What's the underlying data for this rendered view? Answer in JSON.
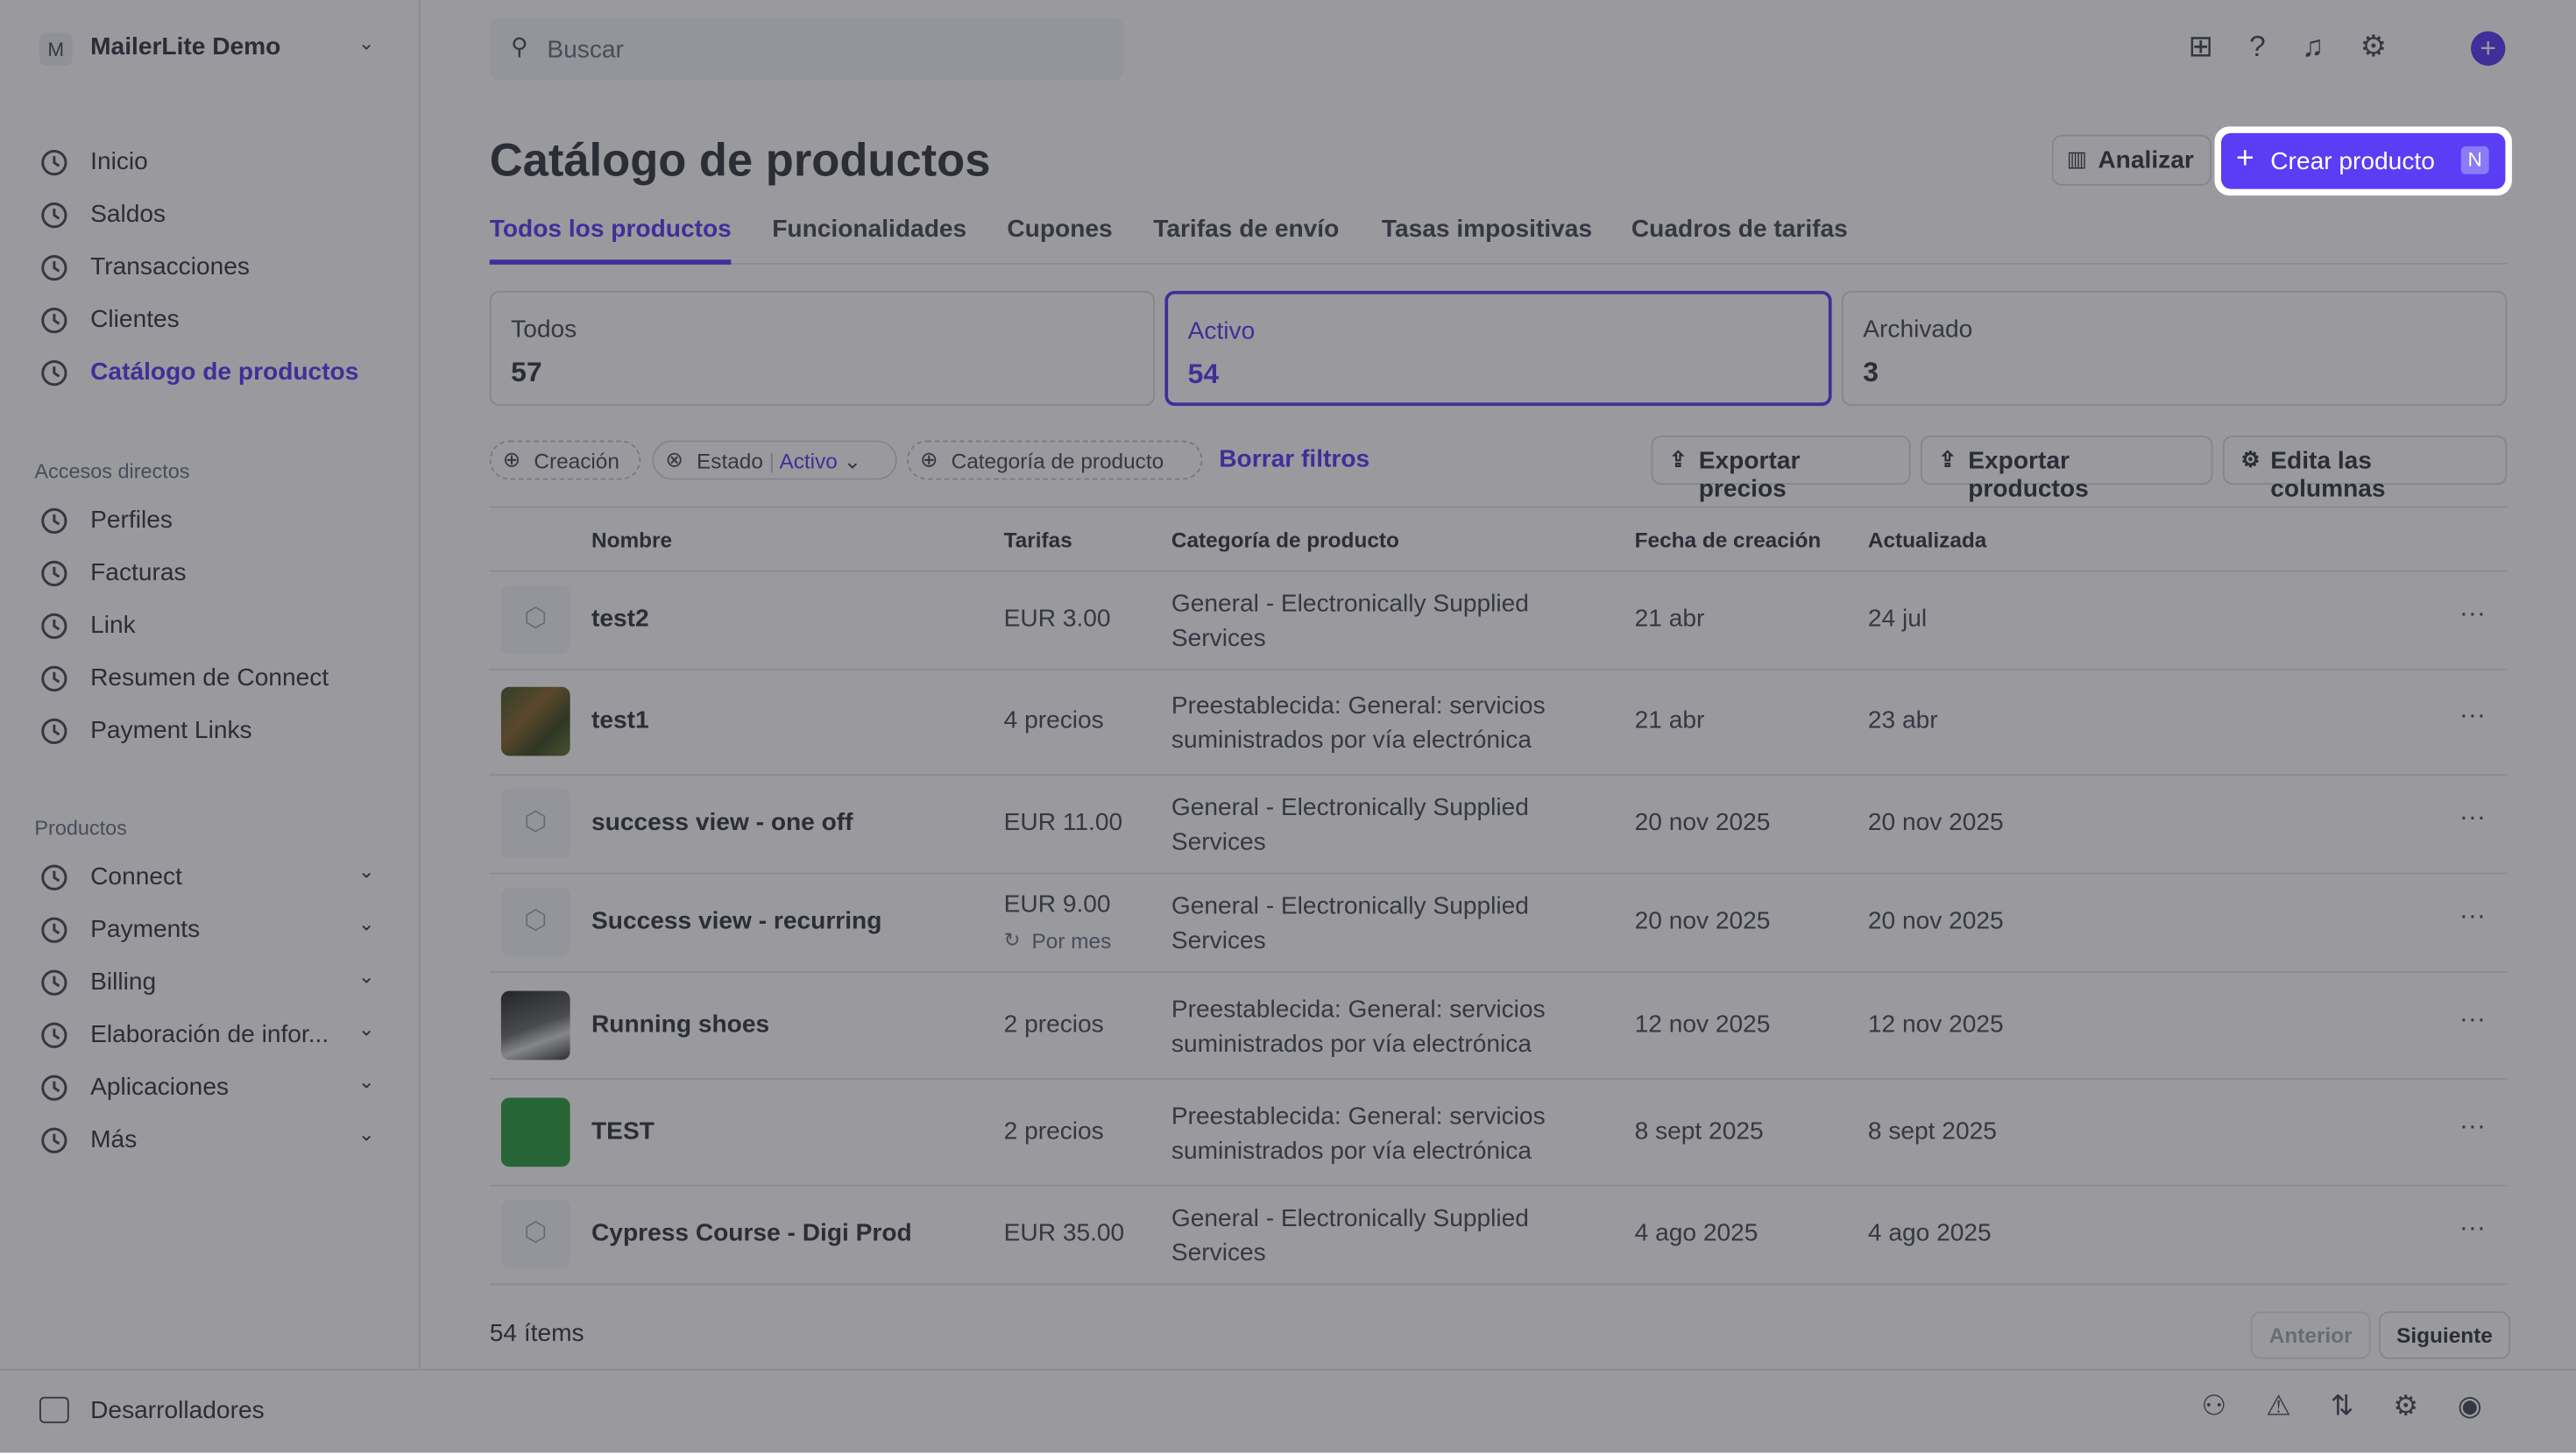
{
  "sidebar": {
    "account_initial": "M",
    "account": "MailerLite Demo",
    "nav": [
      "Inicio",
      "Saldos",
      "Transacciones",
      "Clientes",
      "Catálogo de productos"
    ],
    "shortcuts_title": "Accesos directos",
    "shortcuts": [
      "Perfiles",
      "Facturas",
      "Link",
      "Resumen de Connect",
      "Payment Links"
    ],
    "products_title": "Productos",
    "products": [
      "Connect",
      "Payments",
      "Billing",
      "Elaboración de infor...",
      "Aplicaciones",
      "Más"
    ],
    "developers": "Desarrolladores"
  },
  "search_placeholder": "Buscar",
  "page": {
    "title": "Catálogo de productos",
    "analyze": "Analizar",
    "create": "Crear producto",
    "create_shortcut": "N"
  },
  "tabs": [
    "Todos los productos",
    "Funcionalidades",
    "Cupones",
    "Tarifas de envío",
    "Tasas impositivas",
    "Cuadros de tarifas"
  ],
  "stats": [
    {
      "label": "Todos",
      "value": 57
    },
    {
      "label": "Activo",
      "value": 54
    },
    {
      "label": "Archivado",
      "value": 3
    }
  ],
  "filters": {
    "creation": "Creación",
    "status": "Estado",
    "status_value": "Activo",
    "category": "Categoría de producto",
    "clear": "Borrar filtros",
    "export_prices": "Exportar precios",
    "export_products": "Exportar productos",
    "edit_columns": "Edita las columnas"
  },
  "table": {
    "columns": [
      "Nombre",
      "Tarifas",
      "Categoría de producto",
      "Fecha de creación",
      "Actualizada"
    ],
    "rows": [
      {
        "name": "test2",
        "price": "EUR 3.00",
        "category": "General - Electronically Supplied Services",
        "created": "21 abr",
        "updated": "24 jul"
      },
      {
        "name": "test1",
        "price": "4 precios",
        "category": "Preestablecida: General: servicios suministrados por vía electrónica",
        "created": "21 abr",
        "updated": "23 abr"
      },
      {
        "name": "success view - one off",
        "price": "EUR 11.00",
        "category": "General - Electronically Supplied Services",
        "created": "20 nov 2025",
        "updated": "20 nov 2025"
      },
      {
        "name": "Success view - recurring",
        "price": "EUR 9.00",
        "price_note": "Por mes",
        "category": "General - Electronically Supplied Services",
        "created": "20 nov 2025",
        "updated": "20 nov 2025"
      },
      {
        "name": "Running shoes",
        "price": "2 precios",
        "category": "Preestablecida: General: servicios suministrados por vía electrónica",
        "created": "12 nov 2025",
        "updated": "12 nov 2025"
      },
      {
        "name": "TEST",
        "price": "2 precios",
        "category": "Preestablecida: General: servicios suministrados por vía electrónica",
        "created": "8 sept 2025",
        "updated": "8 sept 2025"
      },
      {
        "name": "Cypress Course - Digi Prod",
        "price": "EUR 35.00",
        "category": "General - Electronically Supplied Services",
        "created": "4 ago 2025",
        "updated": "4 ago 2025"
      }
    ]
  },
  "footer": {
    "count": "54 ítems",
    "prev": "Anterior",
    "next": "Siguiente"
  }
}
